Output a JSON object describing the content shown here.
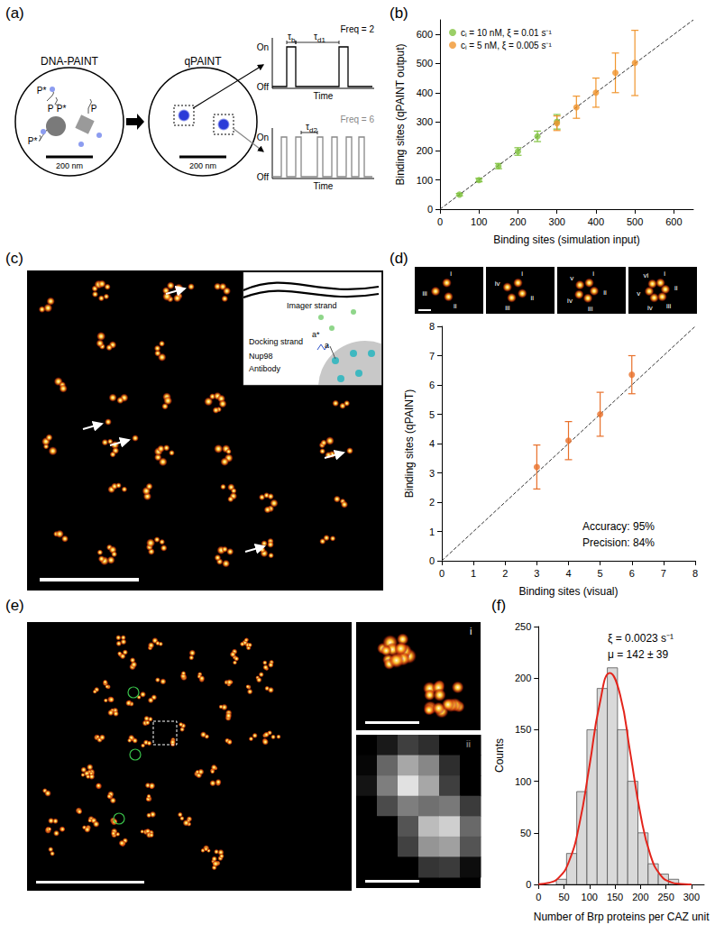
{
  "chart_data": [
    {
      "label": "(b)",
      "type": "scatter",
      "xlabel": "Binding sites (simulation input)",
      "ylabel": "Binding sites (qPAINT output)",
      "xlim": [
        0,
        650
      ],
      "ylim": [
        0,
        650
      ],
      "xticks": [
        0,
        100,
        200,
        300,
        400,
        500,
        600
      ],
      "yticks": [
        0,
        100,
        200,
        300,
        400,
        500,
        600
      ],
      "grid": false,
      "legend": "top-left",
      "series": [
        {
          "name": "cᵢ = 10 nM, ξ = 0.01 s⁻¹",
          "color": "#82c341",
          "marker": "circle",
          "x": [
            50,
            100,
            150,
            200,
            250,
            300
          ],
          "values": [
            50,
            100,
            148,
            198,
            250,
            300
          ],
          "errors": [
            4,
            6,
            9,
            13,
            18,
            25
          ]
        },
        {
          "name": "cᵢ = 5 nM, ξ = 0.005 s⁻¹",
          "color": "#f0952e",
          "marker": "circle",
          "x": [
            300,
            350,
            400,
            450,
            500
          ],
          "values": [
            295,
            350,
            400,
            468,
            502
          ],
          "errors": [
            25,
            38,
            50,
            68,
            112
          ]
        },
        {
          "type": "line",
          "line_style": "dashed",
          "color": "#333333",
          "x": [
            0,
            650
          ],
          "values": [
            0,
            650
          ]
        }
      ]
    },
    {
      "label": "(d)",
      "type": "scatter",
      "xlabel": "Binding sites (visual)",
      "ylabel": "Binding sites (qPAINT)",
      "xlim": [
        0,
        8
      ],
      "ylim": [
        0,
        8
      ],
      "xticks": [
        0,
        1,
        2,
        3,
        4,
        5,
        6,
        7,
        8
      ],
      "yticks": [
        0,
        1,
        2,
        3,
        4,
        5,
        6,
        7,
        8
      ],
      "grid": false,
      "annotations": [
        "Accuracy: 95%",
        "Precision: 84%"
      ],
      "series": [
        {
          "color": "#e8702a",
          "marker": "circle",
          "x": [
            3,
            4,
            5,
            6
          ],
          "values": [
            3.2,
            4.1,
            5,
            6.35
          ],
          "errors": [
            0.75,
            0.65,
            0.75,
            0.65
          ]
        },
        {
          "type": "line",
          "line_style": "dashed",
          "color": "#333333",
          "x": [
            0,
            8
          ],
          "values": [
            0,
            8
          ]
        }
      ]
    },
    {
      "label": "(f)",
      "type": "histogram",
      "xlabel": "Number of Brp proteins per CAZ unit",
      "ylabel": "Counts",
      "xlim": [
        0,
        325
      ],
      "ylim": [
        0,
        250
      ],
      "xticks": [
        0,
        50,
        100,
        150,
        200,
        250,
        300
      ],
      "yticks": [
        0,
        50,
        100,
        150,
        200,
        250
      ],
      "grid": false,
      "bins": [
        35,
        55,
        75,
        95,
        115,
        135,
        155,
        175,
        195,
        215,
        235,
        255,
        275
      ],
      "values": [
        5,
        30,
        90,
        150,
        190,
        210,
        150,
        100,
        50,
        20,
        10,
        5
      ],
      "color": "#d9d9d9",
      "annotations": [
        "ξ = 0.0023 s⁻¹",
        "μ = 142 ± 39"
      ],
      "series": [
        {
          "type": "line",
          "line_style": "solid",
          "color": "#e3241b",
          "x": [
            0,
            20,
            40,
            60,
            80,
            100,
            120,
            140,
            160,
            180,
            200,
            220,
            240,
            260,
            280,
            300
          ],
          "values": [
            0.3,
            1.5,
            6.7,
            22.5,
            58,
            115,
            175,
            205,
            184,
            127.5,
            68,
            27.7,
            8.7,
            2.1,
            0.4,
            0
          ]
        }
      ]
    }
  ],
  "panels": {
    "a": {
      "label": "(a)",
      "titles": [
        "DNA-PAINT",
        "qPAINT"
      ],
      "strands": [
        "P*",
        "P",
        "P*",
        "P",
        "P*"
      ],
      "scale_bars": [
        "200 nm",
        "200 nm"
      ],
      "traces": [
        {
          "on": "On",
          "off": "Off",
          "time": "Time",
          "freq": "Freq = 2",
          "intervals": [
            "τb",
            "τd1"
          ]
        },
        {
          "on": "On",
          "off": "Off",
          "time": "Time",
          "freq": "Freq = 6",
          "intervals": [
            "τd2"
          ]
        }
      ]
    },
    "c": {
      "label": "(c)",
      "inset": [
        "Imager strand",
        "a*",
        "a",
        "Docking strand",
        "Nup98",
        "Antibody"
      ]
    },
    "d": {
      "sites": [
        [
          "i",
          "ii",
          "iii"
        ],
        [
          "i",
          "ii",
          "iii",
          "iv"
        ],
        [
          "i",
          "ii",
          "iii",
          "iv",
          "v"
        ],
        [
          "i",
          "ii",
          "iii",
          "iv",
          "v",
          "vi"
        ]
      ]
    },
    "e": {
      "label": "(e)",
      "insets": [
        "i",
        "ii"
      ]
    }
  }
}
